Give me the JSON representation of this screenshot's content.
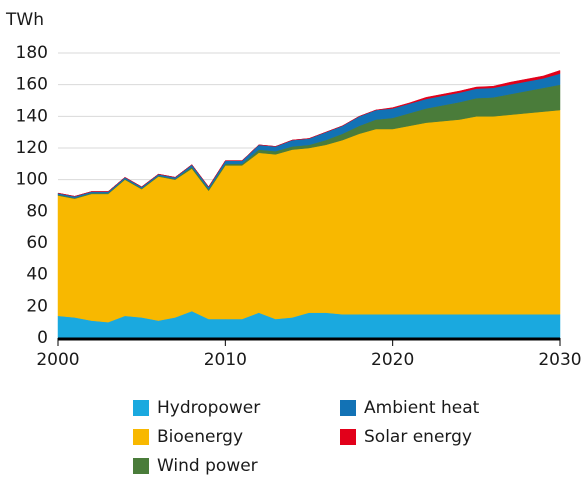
{
  "chart_data": {
    "type": "area",
    "stacked": true,
    "y_label": "TWh",
    "x": [
      2000,
      2001,
      2002,
      2003,
      2004,
      2005,
      2006,
      2007,
      2008,
      2009,
      2010,
      2011,
      2012,
      2013,
      2014,
      2015,
      2016,
      2017,
      2018,
      2019,
      2020,
      2021,
      2022,
      2023,
      2024,
      2025,
      2026,
      2027,
      2028,
      2029,
      2030
    ],
    "xlim": [
      2000,
      2030
    ],
    "xticks": [
      2000,
      2010,
      2020,
      2030
    ],
    "ylim": [
      0,
      180
    ],
    "yticks": [
      0,
      20,
      40,
      60,
      80,
      100,
      120,
      140,
      160,
      180
    ],
    "grid": true,
    "series": [
      {
        "name": "Hydropower",
        "color": "#1aa9df",
        "values": [
          14,
          13,
          11,
          10,
          14,
          13,
          11,
          13,
          17,
          12,
          12,
          12,
          16,
          12,
          13,
          16,
          16,
          15,
          15,
          15,
          15,
          15,
          15,
          15,
          15,
          15,
          15,
          15,
          15,
          15,
          15
        ]
      },
      {
        "name": "Bioenergy",
        "color": "#f8b800",
        "values": [
          76,
          75,
          80,
          81,
          86,
          81,
          91,
          87,
          90,
          81,
          97,
          97,
          101,
          104,
          106,
          104,
          106,
          110,
          114,
          117,
          117,
          119,
          121,
          122,
          123,
          125,
          125,
          126,
          127,
          128,
          129
        ]
      },
      {
        "name": "Wind power",
        "color": "#4a7c3a",
        "values": [
          0.5,
          0.5,
          0.5,
          0.5,
          0.5,
          0.5,
          0.5,
          0.5,
          1,
          1,
          1,
          1,
          2,
          2,
          2,
          2,
          3,
          4,
          5,
          6,
          7,
          8,
          9,
          10,
          11,
          11.5,
          12,
          13,
          14,
          15,
          16
        ]
      },
      {
        "name": "Ambient heat",
        "color": "#1272b5",
        "values": [
          1,
          1,
          1,
          1,
          1,
          1,
          1,
          1,
          1.5,
          1.5,
          2,
          2,
          3,
          3,
          4,
          4,
          5,
          5,
          6,
          6,
          6,
          6,
          6,
          6,
          6,
          6,
          6,
          6,
          6,
          6,
          7
        ]
      },
      {
        "name": "Solar energy",
        "color": "#e2001a",
        "values": [
          0,
          0,
          0,
          0,
          0,
          0,
          0,
          0,
          0,
          0,
          0,
          0,
          0,
          0,
          0,
          0,
          0,
          0,
          0,
          0,
          0.5,
          0.5,
          1,
          1,
          1,
          1,
          1,
          1.5,
          1.5,
          1.5,
          2
        ]
      }
    ]
  }
}
